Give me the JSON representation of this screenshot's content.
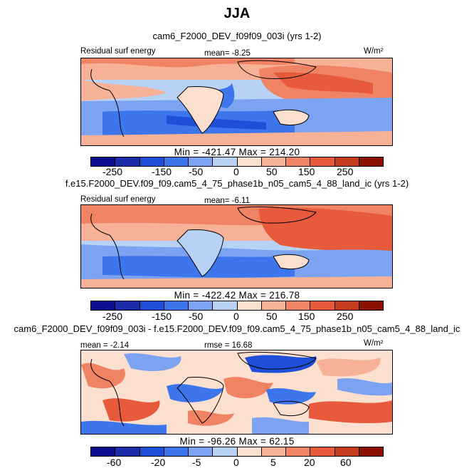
{
  "season": "JJA",
  "colors": {
    "diverging": [
      "#0c0c8f",
      "#1c2ca8",
      "#1f4fd8",
      "#3d75ec",
      "#7ba3f1",
      "#b8d2f5",
      "#fbe0cf",
      "#f6b196",
      "#f08364",
      "#e85a3c",
      "#c63b1e",
      "#8b1002"
    ],
    "frame": "#000000"
  },
  "panels": [
    {
      "id": "panel1",
      "case_title": "cam6_F2000_DEV_f09f09_003i (yrs 1-2)",
      "variable": "Residual surf energy",
      "mean_text": "mean=  -8.25",
      "units": "W/m²",
      "minmax": "Min = -421.47  Max = 214.20",
      "ticks": [
        "-250",
        "-150",
        "-50",
        "0",
        "50",
        "150",
        "250"
      ]
    },
    {
      "id": "panel2",
      "case_title": "f.e15.F2000_DEV.f09_f09.cam5_4_75_phase1b_n05_cam5_4_88_land_ic (yrs 1-2)",
      "variable": "Residual surf energy",
      "mean_text": "mean=  -6.11",
      "units": "",
      "minmax": "Min = -422.42  Max = 216.78",
      "ticks": [
        "-250",
        "-150",
        "-50",
        "0",
        "50",
        "150",
        "250"
      ]
    },
    {
      "id": "panel3",
      "case_title": "cam6_F2000_DEV_f09f09_003i - f.e15.F2000_DEV.f09_f09.cam5_4_75_phase1b_n05_cam5_4_88_land_ic",
      "mean_text": "mean =  -2.14",
      "rmse_text": "rmse =  16.68",
      "units": "W/m²",
      "minmax": "Min = -96.26  Max =  62.15",
      "ticks": [
        "-60",
        "-20",
        "-5",
        "0",
        "5",
        "20",
        "60"
      ]
    }
  ],
  "chart_data": [
    {
      "type": "heatmap",
      "title": "cam6_F2000_DEV_f09f09_003i (yrs 1-2)",
      "variable": "Residual surf energy",
      "units": "W/m2",
      "mean": -8.25,
      "min": -421.47,
      "max": 214.2,
      "colorbar_ticks": [
        -250,
        -150,
        -50,
        0,
        50,
        150,
        250
      ]
    },
    {
      "type": "heatmap",
      "title": "f.e15.F2000_DEV.f09_f09.cam5_4_75_phase1b_n05_cam5_4_88_land_ic (yrs 1-2)",
      "variable": "Residual surf energy",
      "units": "W/m2",
      "mean": -6.11,
      "min": -422.42,
      "max": 216.78,
      "colorbar_ticks": [
        -250,
        -150,
        -50,
        0,
        50,
        150,
        250
      ]
    },
    {
      "type": "heatmap",
      "title": "cam6_F2000_DEV_f09f09_003i - f.e15.F2000_DEV.f09_f09.cam5_4_75_phase1b_n05_cam5_4_88_land_ic",
      "units": "W/m2",
      "mean": -2.14,
      "rmse": 16.68,
      "min": -96.26,
      "max": 62.15,
      "colorbar_ticks": [
        -60,
        -20,
        -5,
        0,
        5,
        20,
        60
      ]
    }
  ]
}
